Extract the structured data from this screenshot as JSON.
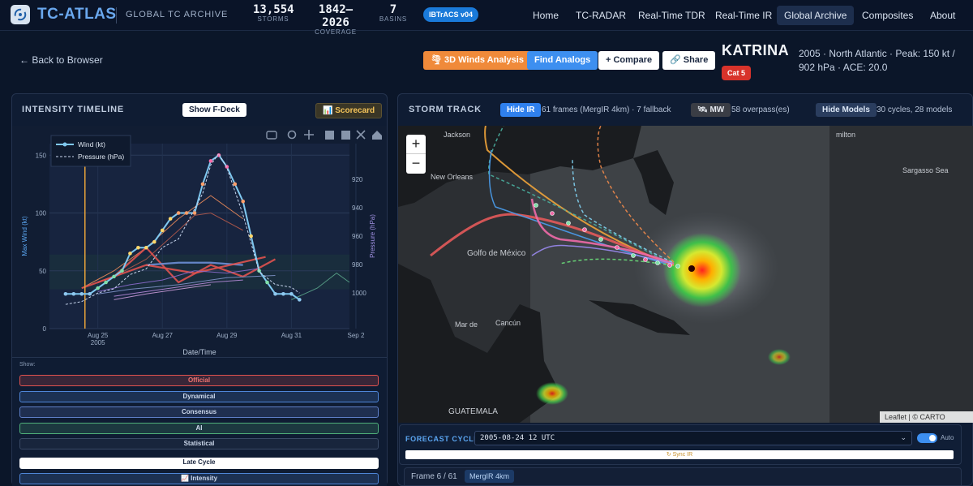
{
  "header": {
    "brand": "TC-ATLAS",
    "tagline": "GLOBAL TC ARCHIVE",
    "stats": [
      {
        "value": "13,554",
        "label": "STORMS"
      },
      {
        "value": "1842–2026",
        "label": "COVERAGE"
      },
      {
        "value": "7",
        "label": "BASINS"
      }
    ],
    "dataset_badge": "IBTrACS v04",
    "nav": [
      {
        "label": "Home",
        "active": false
      },
      {
        "label": "TC-RADAR",
        "active": false
      },
      {
        "label": "Real-Time TDR",
        "active": false
      },
      {
        "label": "Real-Time IR",
        "active": false
      },
      {
        "label": "Global Archive",
        "active": true
      },
      {
        "label": "Composites",
        "active": false
      },
      {
        "label": "About",
        "active": false
      }
    ]
  },
  "storm_header": {
    "back_label": "← Back to Browser",
    "actions": {
      "winds": "🌪 3D Winds Analysis",
      "analogs": "Find Analogs",
      "compare": "+ Compare",
      "share": "🔗 Share"
    },
    "name": "KATRINA",
    "info": "2005 · North Atlantic · Peak: 150 kt / 902 hPa · ACE: 20.0",
    "category": "Cat 5"
  },
  "intensity_panel": {
    "title": "INTENSITY TIMELINE",
    "fdeck_button": "Show F-Deck",
    "scorecard_button": "📊 Scorecard",
    "show_label": "Show:",
    "model_groups": [
      {
        "label": "Official",
        "color": "#e0524f"
      },
      {
        "label": "Dynamical",
        "color": "#4f86d8"
      },
      {
        "label": "Consensus",
        "color": "#5f7fc8"
      },
      {
        "label": "AI",
        "color": "#4fb07a"
      },
      {
        "label": "Statistical",
        "color": "#3a4a66"
      },
      {
        "label": "Late Cycle",
        "color": "#ffffff"
      },
      {
        "label": "📈 Intensity",
        "color": "#4f86d8"
      }
    ]
  },
  "chart_data": {
    "type": "line",
    "title": "",
    "xlabel": "Date/Time",
    "ylabel": "Max Wind (kt)",
    "y2label": "Pressure (hPa)",
    "x_ticks": [
      "Aug 25",
      "Aug 27",
      "Aug 29",
      "Aug 31",
      "Sep 2"
    ],
    "x_tick_year": "2005",
    "x_range_days": [
      23.5,
      32.8
    ],
    "ylim": [
      0,
      160
    ],
    "y_ticks": [
      0,
      50,
      100,
      150
    ],
    "y2lim": [
      1025,
      895
    ],
    "y2_ticks": [
      920,
      940,
      960,
      980,
      1000
    ],
    "legend": [
      "Wind (kt)",
      "Pressure (hPa)"
    ],
    "legend_position": "top-left",
    "series": [
      {
        "name": "Wind (kt)",
        "color": "#7fc8f0",
        "x": [
          24.0,
          24.25,
          24.5,
          24.75,
          25.0,
          25.25,
          25.5,
          25.75,
          26.0,
          26.25,
          26.5,
          26.75,
          27.0,
          27.25,
          27.5,
          27.75,
          28.0,
          28.25,
          28.5,
          28.75,
          29.0,
          29.25,
          29.5,
          29.75,
          30.0,
          30.25,
          30.5,
          30.75,
          31.0,
          31.25
        ],
        "y": [
          30,
          30,
          30,
          30,
          35,
          40,
          45,
          50,
          65,
          70,
          70,
          75,
          85,
          95,
          100,
          100,
          100,
          125,
          145,
          150,
          140,
          125,
          110,
          80,
          50,
          40,
          30,
          30,
          30,
          25
        ]
      },
      {
        "name": "Pressure (hPa)",
        "color": "#c8d6ee",
        "dashed": true,
        "x": [
          24.0,
          24.5,
          25.0,
          25.5,
          26.0,
          26.5,
          27.0,
          27.5,
          28.0,
          28.25,
          28.5,
          28.75,
          29.0,
          29.5,
          30.0,
          30.5,
          31.0,
          31.25
        ],
        "y": [
          1008,
          1006,
          1000,
          997,
          987,
          983,
          968,
          962,
          941,
          930,
          910,
          902,
          912,
          945,
          985,
          994,
          996,
          1000
        ]
      }
    ]
  },
  "track_panel": {
    "title": "STORM TRACK",
    "ir_button": "Hide IR",
    "ir_info": "61 frames (MergIR 4km) · 7 fallback",
    "mw_button": "🛰 MW",
    "mw_info": "58 overpass(es)",
    "models_button": "Hide Models",
    "models_info": "30 cycles, 28 models",
    "zoom_in": "+",
    "zoom_out": "−",
    "map_labels": [
      "Jackson",
      "New Orleans",
      "Golfo de México",
      "Mar de",
      "Cancún",
      "GUATEMALA",
      "Sargasso Sea",
      "milton"
    ],
    "attribution": "Leaflet | © CARTO",
    "forecast_label": "FORECAST CYCLE",
    "forecast_value": "2005-08-24 12 UTC",
    "auto_label": "Auto",
    "sync_label": "↻ Sync IR",
    "frame_label": "Frame 6 / 61",
    "frame_source": "MergIR 4km"
  }
}
